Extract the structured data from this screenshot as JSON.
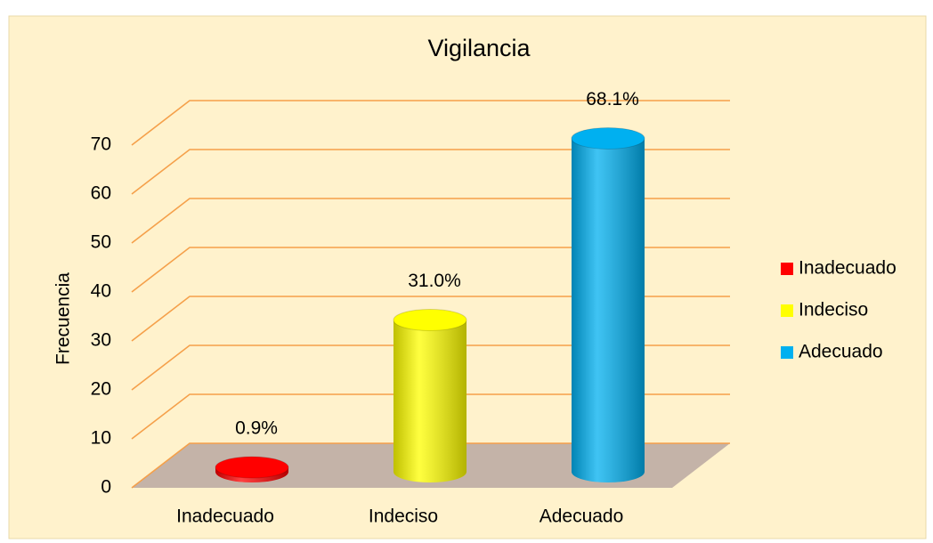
{
  "chart_data": {
    "type": "bar",
    "title": "Vigilancia",
    "y_label": "Frecuencia",
    "categories": [
      "Inadecuado",
      "Indeciso",
      "Adecuado"
    ],
    "values": [
      0.9,
      31.0,
      68.1
    ],
    "value_labels": [
      "0.9%",
      "31.0%",
      "68.1%"
    ],
    "colors": [
      "#ff0000",
      "#ffff00",
      "#00b0f0"
    ],
    "ylim": [
      0,
      70
    ],
    "yticks": [
      0,
      10,
      20,
      30,
      40,
      50,
      60,
      70
    ],
    "grid": true,
    "legend": "right"
  }
}
